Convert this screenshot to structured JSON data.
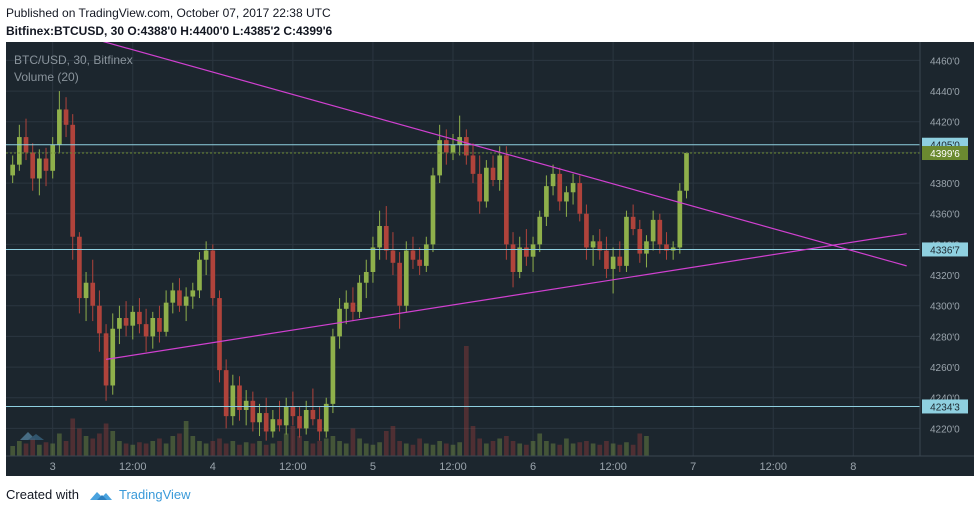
{
  "header": {
    "published": "Published on TradingView.com, October 07, 2017 22:38 UTC",
    "symbol_line": "Bitfinex:BTCUSD, 30  O:4388'0  H:4400'0  L:4385'2  C:4399'6"
  },
  "chart_label": {
    "title": "BTC/USD, 30, Bitfinex",
    "volume": "Volume (20)"
  },
  "footer": {
    "created_with": "Created with",
    "brand": "TradingView"
  },
  "colors": {
    "background": "#1c262e",
    "grid": "#2b3640",
    "up": "#8fb04b",
    "down": "#b0433b",
    "trendline": "#d040d0",
    "hline": "#8fd0e0",
    "price_tag": "#6b8a30"
  },
  "chart_data": {
    "type": "candlestick",
    "title": "BTC/USD, 30, Bitfinex",
    "ylim": [
      4202,
      4472
    ],
    "y_ticks": [
      "4460'0",
      "4440'0",
      "4420'0",
      "4400'0",
      "4380'0",
      "4360'0",
      "4340'0",
      "4320'0",
      "4300'0",
      "4280'0",
      "4260'0",
      "4240'0",
      "4220'0"
    ],
    "y_tick_values": [
      4460,
      4440,
      4420,
      4400,
      4380,
      4360,
      4340,
      4320,
      4300,
      4280,
      4260,
      4240,
      4220
    ],
    "x_ticks": [
      "3",
      "12:00",
      "4",
      "12:00",
      "5",
      "12:00",
      "6",
      "12:00",
      "7",
      "12:00",
      "8"
    ],
    "x_tick_values": [
      0,
      12,
      24,
      36,
      48,
      60,
      72,
      84,
      96,
      108,
      120
    ],
    "xlim": [
      -7,
      130
    ],
    "horizontal_levels": [
      {
        "value": 4405.0,
        "label": "4405'0"
      },
      {
        "value": 4336.7,
        "label": "4336'7"
      },
      {
        "value": 4234.3,
        "label": "4234'3"
      }
    ],
    "last_price": {
      "value": 4399.6,
      "label": "4399'6"
    },
    "trendlines": [
      {
        "x1": 7,
        "y1": 4473,
        "x2": 128,
        "y2": 4326
      },
      {
        "x1": 8,
        "y1": 4265,
        "x2": 128,
        "y2": 4347
      }
    ],
    "candles_hourly": [
      {
        "t": -6,
        "o": 4385,
        "h": 4398,
        "l": 4380,
        "c": 4392
      },
      {
        "t": -5,
        "o": 4392,
        "h": 4418,
        "l": 4388,
        "c": 4410
      },
      {
        "t": -4,
        "o": 4410,
        "h": 4422,
        "l": 4395,
        "c": 4400
      },
      {
        "t": -3,
        "o": 4400,
        "h": 4406,
        "l": 4375,
        "c": 4383
      },
      {
        "t": -2,
        "o": 4383,
        "h": 4402,
        "l": 4372,
        "c": 4396
      },
      {
        "t": -1,
        "o": 4396,
        "h": 4403,
        "l": 4378,
        "c": 4388
      },
      {
        "t": 0,
        "o": 4388,
        "h": 4410,
        "l": 4383,
        "c": 4405
      },
      {
        "t": 1,
        "o": 4405,
        "h": 4440,
        "l": 4400,
        "c": 4428
      },
      {
        "t": 2,
        "o": 4428,
        "h": 4436,
        "l": 4410,
        "c": 4418
      },
      {
        "t": 3,
        "o": 4418,
        "h": 4425,
        "l": 4330,
        "c": 4345
      },
      {
        "t": 4,
        "o": 4345,
        "h": 4348,
        "l": 4295,
        "c": 4305
      },
      {
        "t": 5,
        "o": 4305,
        "h": 4322,
        "l": 4290,
        "c": 4315
      },
      {
        "t": 6,
        "o": 4315,
        "h": 4330,
        "l": 4290,
        "c": 4300
      },
      {
        "t": 7,
        "o": 4300,
        "h": 4310,
        "l": 4270,
        "c": 4282
      },
      {
        "t": 8,
        "o": 4282,
        "h": 4288,
        "l": 4238,
        "c": 4248
      },
      {
        "t": 9,
        "o": 4248,
        "h": 4295,
        "l": 4242,
        "c": 4285
      },
      {
        "t": 10,
        "o": 4285,
        "h": 4300,
        "l": 4275,
        "c": 4292
      },
      {
        "t": 11,
        "o": 4292,
        "h": 4303,
        "l": 4280,
        "c": 4287
      },
      {
        "t": 12,
        "o": 4287,
        "h": 4300,
        "l": 4278,
        "c": 4296
      },
      {
        "t": 13,
        "o": 4296,
        "h": 4305,
        "l": 4282,
        "c": 4288
      },
      {
        "t": 14,
        "o": 4288,
        "h": 4298,
        "l": 4270,
        "c": 4280
      },
      {
        "t": 15,
        "o": 4280,
        "h": 4296,
        "l": 4272,
        "c": 4292
      },
      {
        "t": 16,
        "o": 4292,
        "h": 4300,
        "l": 4276,
        "c": 4283
      },
      {
        "t": 17,
        "o": 4283,
        "h": 4310,
        "l": 4280,
        "c": 4302
      },
      {
        "t": 18,
        "o": 4302,
        "h": 4315,
        "l": 4295,
        "c": 4310
      },
      {
        "t": 19,
        "o": 4310,
        "h": 4318,
        "l": 4296,
        "c": 4300
      },
      {
        "t": 20,
        "o": 4300,
        "h": 4312,
        "l": 4290,
        "c": 4306
      },
      {
        "t": 21,
        "o": 4306,
        "h": 4315,
        "l": 4298,
        "c": 4310
      },
      {
        "t": 22,
        "o": 4310,
        "h": 4335,
        "l": 4305,
        "c": 4330
      },
      {
        "t": 23,
        "o": 4330,
        "h": 4342,
        "l": 4320,
        "c": 4336
      },
      {
        "t": 24,
        "o": 4336,
        "h": 4340,
        "l": 4300,
        "c": 4305
      },
      {
        "t": 25,
        "o": 4305,
        "h": 4310,
        "l": 4250,
        "c": 4258
      },
      {
        "t": 26,
        "o": 4258,
        "h": 4265,
        "l": 4220,
        "c": 4228
      },
      {
        "t": 27,
        "o": 4228,
        "h": 4255,
        "l": 4222,
        "c": 4248
      },
      {
        "t": 28,
        "o": 4248,
        "h": 4254,
        "l": 4225,
        "c": 4232
      },
      {
        "t": 29,
        "o": 4232,
        "h": 4245,
        "l": 4222,
        "c": 4238
      },
      {
        "t": 30,
        "o": 4238,
        "h": 4244,
        "l": 4218,
        "c": 4224
      },
      {
        "t": 31,
        "o": 4224,
        "h": 4236,
        "l": 4215,
        "c": 4230
      },
      {
        "t": 32,
        "o": 4230,
        "h": 4240,
        "l": 4212,
        "c": 4218
      },
      {
        "t": 33,
        "o": 4218,
        "h": 4232,
        "l": 4214,
        "c": 4226
      },
      {
        "t": 34,
        "o": 4226,
        "h": 4238,
        "l": 4218,
        "c": 4222
      },
      {
        "t": 35,
        "o": 4222,
        "h": 4240,
        "l": 4216,
        "c": 4234
      },
      {
        "t": 36,
        "o": 4234,
        "h": 4244,
        "l": 4222,
        "c": 4228
      },
      {
        "t": 37,
        "o": 4228,
        "h": 4234,
        "l": 4214,
        "c": 4220
      },
      {
        "t": 38,
        "o": 4220,
        "h": 4238,
        "l": 4216,
        "c": 4232
      },
      {
        "t": 39,
        "o": 4232,
        "h": 4246,
        "l": 4222,
        "c": 4226
      },
      {
        "t": 40,
        "o": 4226,
        "h": 4234,
        "l": 4212,
        "c": 4218
      },
      {
        "t": 41,
        "o": 4218,
        "h": 4240,
        "l": 4214,
        "c": 4236
      },
      {
        "t": 42,
        "o": 4236,
        "h": 4285,
        "l": 4230,
        "c": 4280
      },
      {
        "t": 43,
        "o": 4280,
        "h": 4305,
        "l": 4272,
        "c": 4298
      },
      {
        "t": 44,
        "o": 4298,
        "h": 4310,
        "l": 4288,
        "c": 4302
      },
      {
        "t": 45,
        "o": 4302,
        "h": 4312,
        "l": 4290,
        "c": 4296
      },
      {
        "t": 46,
        "o": 4296,
        "h": 4320,
        "l": 4292,
        "c": 4315
      },
      {
        "t": 47,
        "o": 4315,
        "h": 4330,
        "l": 4305,
        "c": 4322
      },
      {
        "t": 48,
        "o": 4322,
        "h": 4345,
        "l": 4315,
        "c": 4338
      },
      {
        "t": 49,
        "o": 4338,
        "h": 4362,
        "l": 4330,
        "c": 4352
      },
      {
        "t": 50,
        "o": 4352,
        "h": 4365,
        "l": 4330,
        "c": 4336
      },
      {
        "t": 51,
        "o": 4336,
        "h": 4348,
        "l": 4320,
        "c": 4328
      },
      {
        "t": 52,
        "o": 4328,
        "h": 4335,
        "l": 4285,
        "c": 4300
      },
      {
        "t": 53,
        "o": 4300,
        "h": 4342,
        "l": 4296,
        "c": 4336
      },
      {
        "t": 54,
        "o": 4336,
        "h": 4345,
        "l": 4324,
        "c": 4330
      },
      {
        "t": 55,
        "o": 4330,
        "h": 4338,
        "l": 4320,
        "c": 4326
      },
      {
        "t": 56,
        "o": 4326,
        "h": 4345,
        "l": 4322,
        "c": 4340
      },
      {
        "t": 57,
        "o": 4340,
        "h": 4390,
        "l": 4335,
        "c": 4385
      },
      {
        "t": 58,
        "o": 4385,
        "h": 4418,
        "l": 4380,
        "c": 4408
      },
      {
        "t": 59,
        "o": 4408,
        "h": 4415,
        "l": 4392,
        "c": 4400
      },
      {
        "t": 60,
        "o": 4400,
        "h": 4412,
        "l": 4395,
        "c": 4405
      },
      {
        "t": 61,
        "o": 4405,
        "h": 4424,
        "l": 4398,
        "c": 4410
      },
      {
        "t": 62,
        "o": 4410,
        "h": 4415,
        "l": 4392,
        "c": 4398
      },
      {
        "t": 63,
        "o": 4398,
        "h": 4406,
        "l": 4380,
        "c": 4386
      },
      {
        "t": 64,
        "o": 4386,
        "h": 4398,
        "l": 4360,
        "c": 4368
      },
      {
        "t": 65,
        "o": 4368,
        "h": 4395,
        "l": 4364,
        "c": 4390
      },
      {
        "t": 66,
        "o": 4390,
        "h": 4398,
        "l": 4378,
        "c": 4382
      },
      {
        "t": 67,
        "o": 4382,
        "h": 4404,
        "l": 4375,
        "c": 4398
      },
      {
        "t": 68,
        "o": 4398,
        "h": 4404,
        "l": 4330,
        "c": 4340
      },
      {
        "t": 69,
        "o": 4340,
        "h": 4348,
        "l": 4312,
        "c": 4322
      },
      {
        "t": 70,
        "o": 4322,
        "h": 4345,
        "l": 4318,
        "c": 4338
      },
      {
        "t": 71,
        "o": 4338,
        "h": 4350,
        "l": 4326,
        "c": 4332
      },
      {
        "t": 72,
        "o": 4332,
        "h": 4345,
        "l": 4322,
        "c": 4340
      },
      {
        "t": 73,
        "o": 4340,
        "h": 4362,
        "l": 4335,
        "c": 4358
      },
      {
        "t": 74,
        "o": 4358,
        "h": 4385,
        "l": 4352,
        "c": 4378
      },
      {
        "t": 75,
        "o": 4378,
        "h": 4392,
        "l": 4372,
        "c": 4386
      },
      {
        "t": 76,
        "o": 4386,
        "h": 4390,
        "l": 4362,
        "c": 4368
      },
      {
        "t": 77,
        "o": 4368,
        "h": 4378,
        "l": 4358,
        "c": 4374
      },
      {
        "t": 78,
        "o": 4374,
        "h": 4386,
        "l": 4366,
        "c": 4380
      },
      {
        "t": 79,
        "o": 4380,
        "h": 4385,
        "l": 4355,
        "c": 4360
      },
      {
        "t": 80,
        "o": 4360,
        "h": 4366,
        "l": 4330,
        "c": 4338
      },
      {
        "t": 81,
        "o": 4338,
        "h": 4346,
        "l": 4326,
        "c": 4342
      },
      {
        "t": 82,
        "o": 4342,
        "h": 4350,
        "l": 4330,
        "c": 4336
      },
      {
        "t": 83,
        "o": 4336,
        "h": 4345,
        "l": 4318,
        "c": 4324
      },
      {
        "t": 84,
        "o": 4324,
        "h": 4338,
        "l": 4308,
        "c": 4332
      },
      {
        "t": 85,
        "o": 4332,
        "h": 4342,
        "l": 4322,
        "c": 4326
      },
      {
        "t": 86,
        "o": 4326,
        "h": 4362,
        "l": 4322,
        "c": 4358
      },
      {
        "t": 87,
        "o": 4358,
        "h": 4366,
        "l": 4346,
        "c": 4350
      },
      {
        "t": 88,
        "o": 4350,
        "h": 4356,
        "l": 4328,
        "c": 4334
      },
      {
        "t": 89,
        "o": 4334,
        "h": 4346,
        "l": 4325,
        "c": 4342
      },
      {
        "t": 90,
        "o": 4342,
        "h": 4362,
        "l": 4336,
        "c": 4356
      },
      {
        "t": 91,
        "o": 4356,
        "h": 4360,
        "l": 4334,
        "c": 4340
      },
      {
        "t": 92,
        "o": 4340,
        "h": 4348,
        "l": 4330,
        "c": 4336
      },
      {
        "t": 93,
        "o": 4336,
        "h": 4342,
        "l": 4330,
        "c": 4338
      },
      {
        "t": 94,
        "o": 4338,
        "h": 4380,
        "l": 4334,
        "c": 4375
      },
      {
        "t": 95,
        "o": 4375,
        "h": 4400,
        "l": 4370,
        "c": 4399.6
      }
    ],
    "volumes_hourly": [
      8,
      12,
      10,
      14,
      9,
      11,
      10,
      18,
      12,
      30,
      22,
      16,
      14,
      18,
      26,
      20,
      12,
      10,
      9,
      11,
      10,
      12,
      14,
      10,
      16,
      18,
      28,
      16,
      12,
      10,
      12,
      14,
      10,
      12,
      9,
      11,
      10,
      12,
      9,
      10,
      12,
      18,
      24,
      16,
      12,
      10,
      12,
      14,
      16,
      12,
      10,
      22,
      14,
      10,
      9,
      11,
      20,
      24,
      12,
      10,
      9,
      14,
      10,
      9,
      12,
      10,
      9,
      11,
      88,
      24,
      14,
      10,
      12,
      14,
      16,
      12,
      10,
      9,
      12,
      18,
      12,
      10,
      9,
      14,
      10,
      11,
      12,
      10,
      9,
      12,
      10,
      9,
      11,
      9,
      18,
      16
    ]
  }
}
